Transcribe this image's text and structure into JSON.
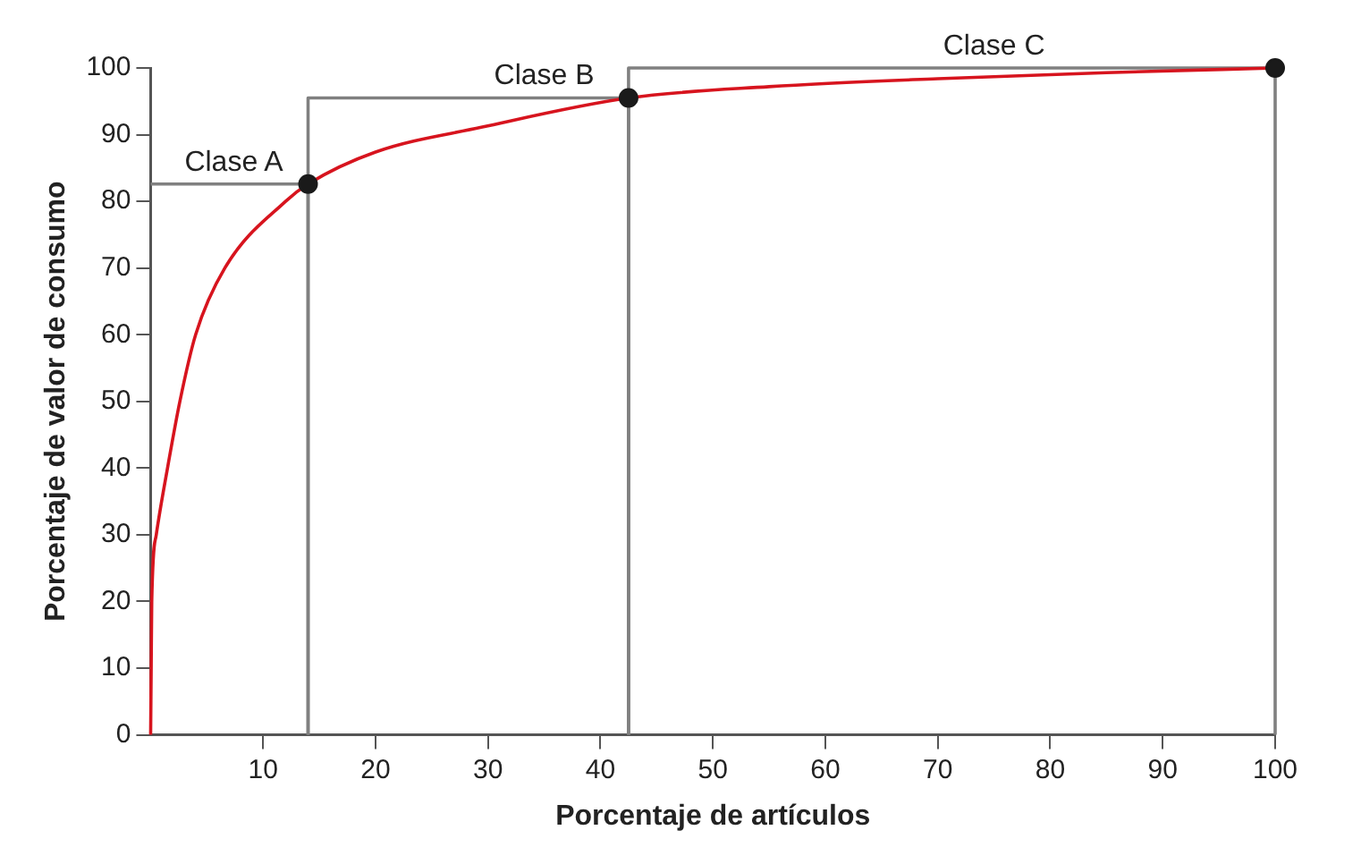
{
  "chart_data": {
    "type": "line",
    "xlabel": "Porcentaje de artículos",
    "ylabel": "Porcentaje de valor de consumo",
    "xlim": [
      0,
      100
    ],
    "ylim": [
      0,
      100
    ],
    "xticks": [
      10,
      20,
      30,
      40,
      50,
      60,
      70,
      80,
      90,
      100
    ],
    "yticks": [
      0,
      10,
      20,
      30,
      40,
      50,
      60,
      70,
      80,
      90,
      100
    ],
    "grid": false,
    "legend": false,
    "series": [
      {
        "type": "line",
        "color": "#808080",
        "marker": "none",
        "line_style": "solid",
        "x": [
          0,
          14,
          14
        ],
        "values": [
          82.6,
          82.6,
          0
        ]
      },
      {
        "type": "line",
        "color": "#808080",
        "marker": "none",
        "line_style": "solid",
        "x": [
          14,
          14,
          42.5,
          42.5
        ],
        "values": [
          0,
          95.5,
          95.5,
          0
        ]
      },
      {
        "type": "line",
        "color": "#808080",
        "marker": "none",
        "line_style": "solid",
        "x": [
          42.5,
          42.5,
          100,
          100
        ],
        "values": [
          0,
          100,
          100,
          0
        ]
      },
      {
        "type": "line",
        "color": "#d7141e",
        "marker": "none",
        "line_style": "solid",
        "x": [
          0,
          0.05,
          0.1,
          0.5,
          1.5,
          2.6,
          4,
          6.6,
          12,
          14,
          20,
          29.4,
          42.5,
          55,
          70,
          85,
          100
        ],
        "values": [
          0,
          10,
          20,
          30,
          40,
          50,
          60,
          70,
          80,
          82.6,
          87.4,
          91.1,
          95.5,
          97.2,
          98.4,
          99.3,
          100
        ]
      },
      {
        "type": "scatter",
        "color": "#1a1a1a",
        "marker": "circle",
        "x": [
          14,
          42.5,
          100
        ],
        "values": [
          82.6,
          95.5,
          100
        ]
      }
    ],
    "annotations": [
      {
        "text": "Clase A",
        "x": 7.4,
        "y": 82.6
      },
      {
        "text": "Clase B",
        "x": 35,
        "y": 95.5
      },
      {
        "text": "Clase C",
        "x": 75,
        "y": 100
      }
    ]
  }
}
